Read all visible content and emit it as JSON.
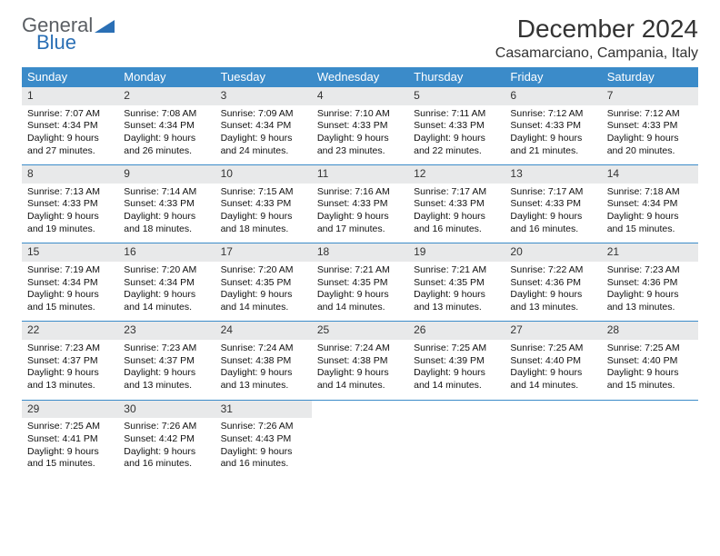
{
  "logo": {
    "line1": "General",
    "line2": "Blue"
  },
  "header": {
    "title": "December 2024",
    "location": "Casamarciano, Campania, Italy"
  },
  "colors": {
    "header_bg": "#3b8bc9",
    "header_text": "#ffffff",
    "daynum_bg": "#e8e9ea",
    "row_border": "#3b8bc9",
    "logo_blue": "#2a6fb5"
  },
  "typography": {
    "title_fontsize": 28,
    "location_fontsize": 16,
    "dayheader_fontsize": 13,
    "cell_fontsize": 10.5
  },
  "day_headers": [
    "Sunday",
    "Monday",
    "Tuesday",
    "Wednesday",
    "Thursday",
    "Friday",
    "Saturday"
  ],
  "weeks": [
    [
      {
        "day": "1",
        "sunrise": "Sunrise: 7:07 AM",
        "sunset": "Sunset: 4:34 PM",
        "dl1": "Daylight: 9 hours",
        "dl2": "and 27 minutes."
      },
      {
        "day": "2",
        "sunrise": "Sunrise: 7:08 AM",
        "sunset": "Sunset: 4:34 PM",
        "dl1": "Daylight: 9 hours",
        "dl2": "and 26 minutes."
      },
      {
        "day": "3",
        "sunrise": "Sunrise: 7:09 AM",
        "sunset": "Sunset: 4:34 PM",
        "dl1": "Daylight: 9 hours",
        "dl2": "and 24 minutes."
      },
      {
        "day": "4",
        "sunrise": "Sunrise: 7:10 AM",
        "sunset": "Sunset: 4:33 PM",
        "dl1": "Daylight: 9 hours",
        "dl2": "and 23 minutes."
      },
      {
        "day": "5",
        "sunrise": "Sunrise: 7:11 AM",
        "sunset": "Sunset: 4:33 PM",
        "dl1": "Daylight: 9 hours",
        "dl2": "and 22 minutes."
      },
      {
        "day": "6",
        "sunrise": "Sunrise: 7:12 AM",
        "sunset": "Sunset: 4:33 PM",
        "dl1": "Daylight: 9 hours",
        "dl2": "and 21 minutes."
      },
      {
        "day": "7",
        "sunrise": "Sunrise: 7:12 AM",
        "sunset": "Sunset: 4:33 PM",
        "dl1": "Daylight: 9 hours",
        "dl2": "and 20 minutes."
      }
    ],
    [
      {
        "day": "8",
        "sunrise": "Sunrise: 7:13 AM",
        "sunset": "Sunset: 4:33 PM",
        "dl1": "Daylight: 9 hours",
        "dl2": "and 19 minutes."
      },
      {
        "day": "9",
        "sunrise": "Sunrise: 7:14 AM",
        "sunset": "Sunset: 4:33 PM",
        "dl1": "Daylight: 9 hours",
        "dl2": "and 18 minutes."
      },
      {
        "day": "10",
        "sunrise": "Sunrise: 7:15 AM",
        "sunset": "Sunset: 4:33 PM",
        "dl1": "Daylight: 9 hours",
        "dl2": "and 18 minutes."
      },
      {
        "day": "11",
        "sunrise": "Sunrise: 7:16 AM",
        "sunset": "Sunset: 4:33 PM",
        "dl1": "Daylight: 9 hours",
        "dl2": "and 17 minutes."
      },
      {
        "day": "12",
        "sunrise": "Sunrise: 7:17 AM",
        "sunset": "Sunset: 4:33 PM",
        "dl1": "Daylight: 9 hours",
        "dl2": "and 16 minutes."
      },
      {
        "day": "13",
        "sunrise": "Sunrise: 7:17 AM",
        "sunset": "Sunset: 4:33 PM",
        "dl1": "Daylight: 9 hours",
        "dl2": "and 16 minutes."
      },
      {
        "day": "14",
        "sunrise": "Sunrise: 7:18 AM",
        "sunset": "Sunset: 4:34 PM",
        "dl1": "Daylight: 9 hours",
        "dl2": "and 15 minutes."
      }
    ],
    [
      {
        "day": "15",
        "sunrise": "Sunrise: 7:19 AM",
        "sunset": "Sunset: 4:34 PM",
        "dl1": "Daylight: 9 hours",
        "dl2": "and 15 minutes."
      },
      {
        "day": "16",
        "sunrise": "Sunrise: 7:20 AM",
        "sunset": "Sunset: 4:34 PM",
        "dl1": "Daylight: 9 hours",
        "dl2": "and 14 minutes."
      },
      {
        "day": "17",
        "sunrise": "Sunrise: 7:20 AM",
        "sunset": "Sunset: 4:35 PM",
        "dl1": "Daylight: 9 hours",
        "dl2": "and 14 minutes."
      },
      {
        "day": "18",
        "sunrise": "Sunrise: 7:21 AM",
        "sunset": "Sunset: 4:35 PM",
        "dl1": "Daylight: 9 hours",
        "dl2": "and 14 minutes."
      },
      {
        "day": "19",
        "sunrise": "Sunrise: 7:21 AM",
        "sunset": "Sunset: 4:35 PM",
        "dl1": "Daylight: 9 hours",
        "dl2": "and 13 minutes."
      },
      {
        "day": "20",
        "sunrise": "Sunrise: 7:22 AM",
        "sunset": "Sunset: 4:36 PM",
        "dl1": "Daylight: 9 hours",
        "dl2": "and 13 minutes."
      },
      {
        "day": "21",
        "sunrise": "Sunrise: 7:23 AM",
        "sunset": "Sunset: 4:36 PM",
        "dl1": "Daylight: 9 hours",
        "dl2": "and 13 minutes."
      }
    ],
    [
      {
        "day": "22",
        "sunrise": "Sunrise: 7:23 AM",
        "sunset": "Sunset: 4:37 PM",
        "dl1": "Daylight: 9 hours",
        "dl2": "and 13 minutes."
      },
      {
        "day": "23",
        "sunrise": "Sunrise: 7:23 AM",
        "sunset": "Sunset: 4:37 PM",
        "dl1": "Daylight: 9 hours",
        "dl2": "and 13 minutes."
      },
      {
        "day": "24",
        "sunrise": "Sunrise: 7:24 AM",
        "sunset": "Sunset: 4:38 PM",
        "dl1": "Daylight: 9 hours",
        "dl2": "and 13 minutes."
      },
      {
        "day": "25",
        "sunrise": "Sunrise: 7:24 AM",
        "sunset": "Sunset: 4:38 PM",
        "dl1": "Daylight: 9 hours",
        "dl2": "and 14 minutes."
      },
      {
        "day": "26",
        "sunrise": "Sunrise: 7:25 AM",
        "sunset": "Sunset: 4:39 PM",
        "dl1": "Daylight: 9 hours",
        "dl2": "and 14 minutes."
      },
      {
        "day": "27",
        "sunrise": "Sunrise: 7:25 AM",
        "sunset": "Sunset: 4:40 PM",
        "dl1": "Daylight: 9 hours",
        "dl2": "and 14 minutes."
      },
      {
        "day": "28",
        "sunrise": "Sunrise: 7:25 AM",
        "sunset": "Sunset: 4:40 PM",
        "dl1": "Daylight: 9 hours",
        "dl2": "and 15 minutes."
      }
    ],
    [
      {
        "day": "29",
        "sunrise": "Sunrise: 7:25 AM",
        "sunset": "Sunset: 4:41 PM",
        "dl1": "Daylight: 9 hours",
        "dl2": "and 15 minutes."
      },
      {
        "day": "30",
        "sunrise": "Sunrise: 7:26 AM",
        "sunset": "Sunset: 4:42 PM",
        "dl1": "Daylight: 9 hours",
        "dl2": "and 16 minutes."
      },
      {
        "day": "31",
        "sunrise": "Sunrise: 7:26 AM",
        "sunset": "Sunset: 4:43 PM",
        "dl1": "Daylight: 9 hours",
        "dl2": "and 16 minutes."
      },
      {
        "empty": true
      },
      {
        "empty": true
      },
      {
        "empty": true
      },
      {
        "empty": true
      }
    ]
  ]
}
